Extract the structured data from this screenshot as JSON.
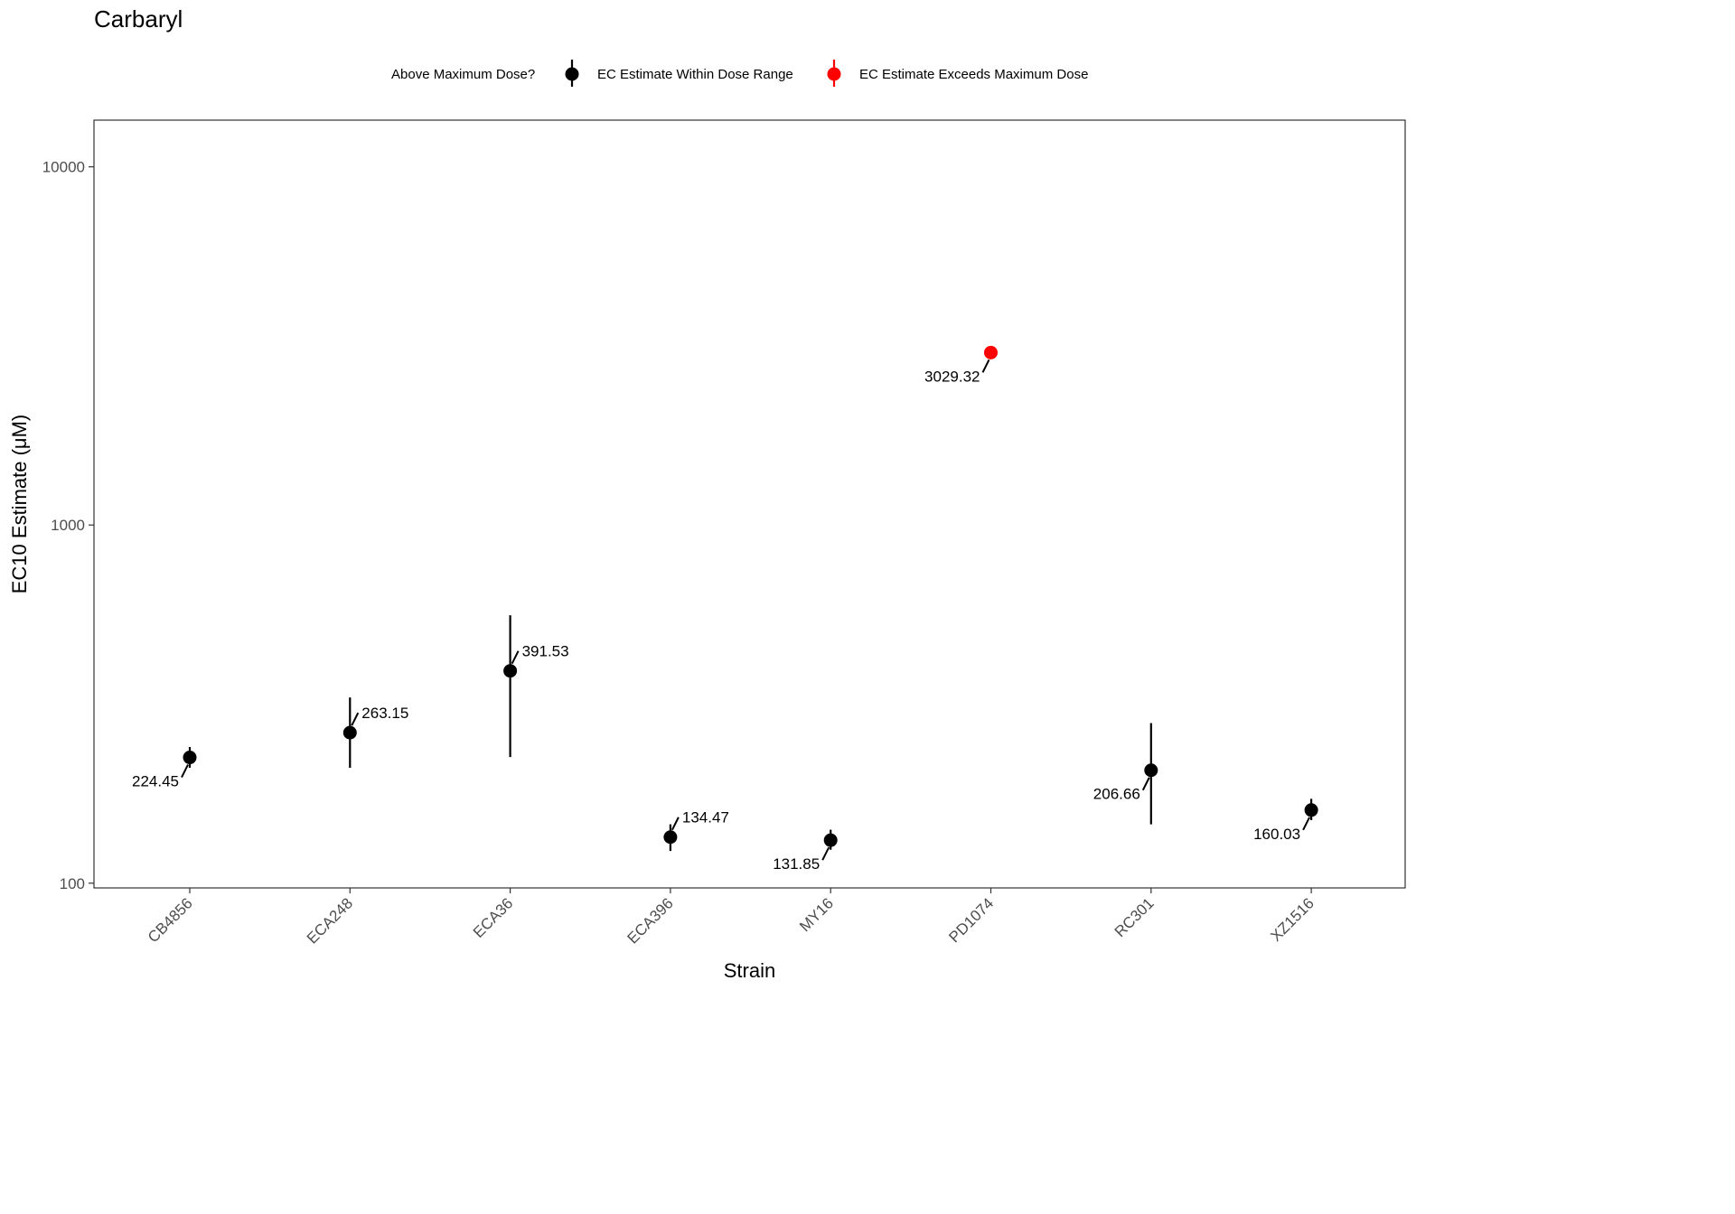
{
  "chart_data": {
    "type": "scatter",
    "title": "Carbaryl",
    "xlabel": "Strain",
    "ylabel": "EC10 Estimate (μM)",
    "yscale": "log",
    "ylim": [
      97,
      13500
    ],
    "yticks": [
      100,
      1000,
      10000
    ],
    "ytick_labels": [
      "100",
      "1000",
      "10000"
    ],
    "grid": false,
    "legend": {
      "title": "Above Maximum Dose?",
      "position": "top",
      "entries": [
        {
          "label": "EC Estimate Within Dose Range",
          "color": "#000000"
        },
        {
          "label": "EC Estimate Exceeds Maximum Dose",
          "color": "#ff0000"
        }
      ]
    },
    "categories": [
      "CB4856",
      "ECA248",
      "ECA36",
      "ECA396",
      "MY16",
      "PD1074",
      "RC301",
      "XZ1516"
    ],
    "points": [
      {
        "strain": "CB4856",
        "value": 224.45,
        "label": "224.45",
        "lower": 210,
        "upper": 240,
        "exceeds": false,
        "label_side": "left"
      },
      {
        "strain": "ECA248",
        "value": 263.15,
        "label": "263.15",
        "lower": 210,
        "upper": 330,
        "exceeds": false,
        "label_side": "right"
      },
      {
        "strain": "ECA36",
        "value": 391.53,
        "label": "391.53",
        "lower": 225,
        "upper": 560,
        "exceeds": false,
        "label_side": "right"
      },
      {
        "strain": "ECA396",
        "value": 134.47,
        "label": "134.47",
        "lower": 123,
        "upper": 146,
        "exceeds": false,
        "label_side": "right"
      },
      {
        "strain": "MY16",
        "value": 131.85,
        "label": "131.85",
        "lower": 124,
        "upper": 141,
        "exceeds": false,
        "label_side": "left"
      },
      {
        "strain": "PD1074",
        "value": 3029.32,
        "label": "3029.32",
        "lower": null,
        "upper": null,
        "exceeds": true,
        "label_side": "left"
      },
      {
        "strain": "RC301",
        "value": 206.66,
        "label": "206.66",
        "lower": 146,
        "upper": 280,
        "exceeds": false,
        "label_side": "left"
      },
      {
        "strain": "XZ1516",
        "value": 160.03,
        "label": "160.03",
        "lower": 150,
        "upper": 172,
        "exceeds": false,
        "label_side": "left"
      }
    ]
  }
}
